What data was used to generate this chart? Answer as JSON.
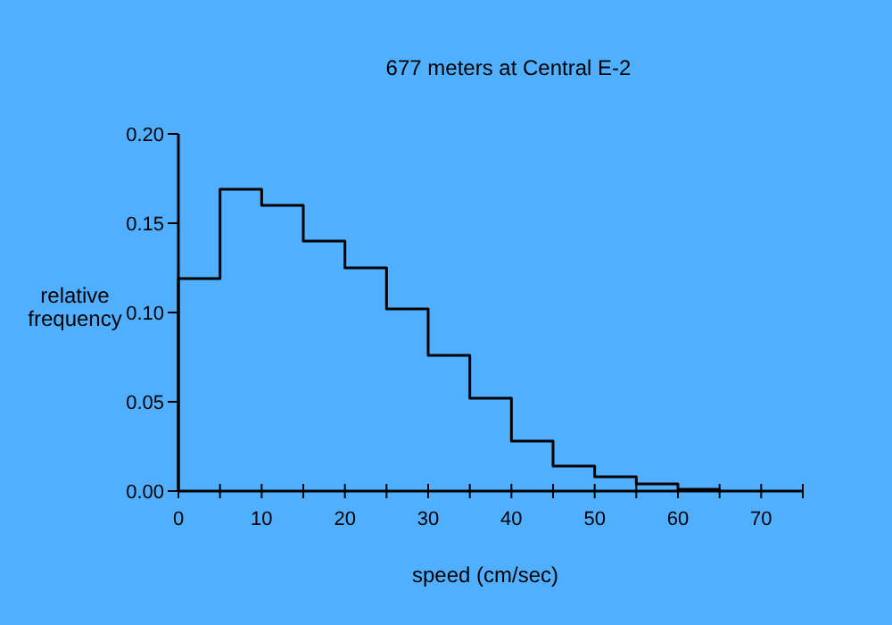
{
  "chart_data": {
    "type": "histogram",
    "title": "677 meters at Central E-2",
    "xlabel": "speed (cm/sec)",
    "ylabel": "relative\nfrequency",
    "bins": [
      0,
      5,
      10,
      15,
      20,
      25,
      30,
      35,
      40,
      45,
      50,
      55,
      60,
      65
    ],
    "values": [
      0.119,
      0.169,
      0.16,
      0.14,
      0.125,
      0.102,
      0.076,
      0.052,
      0.028,
      0.014,
      0.008,
      0.004,
      0.001
    ],
    "color": "#000000",
    "xlim": [
      0,
      75
    ],
    "xticks": [
      0,
      {
        "value": 5,
        "label": null
      },
      10,
      {
        "value": 15,
        "label": null
      },
      20,
      {
        "value": 25,
        "label": null
      },
      30,
      {
        "value": 35,
        "label": null
      },
      40,
      {
        "value": 45,
        "label": null
      },
      50,
      {
        "value": 55,
        "label": null
      },
      60,
      {
        "value": 65,
        "label": null
      },
      70,
      {
        "value": 75,
        "label": null
      }
    ],
    "ylim": [
      0,
      0.2
    ],
    "yticks": [
      {
        "value": 0,
        "label": "0.00"
      },
      {
        "value": 0.05,
        "label": "0.05"
      },
      {
        "value": 0.1,
        "label": "0.10"
      },
      {
        "value": 0.15,
        "label": "0.15"
      },
      {
        "value": 0.2,
        "label": "0.20"
      }
    ],
    "grid": false
  }
}
